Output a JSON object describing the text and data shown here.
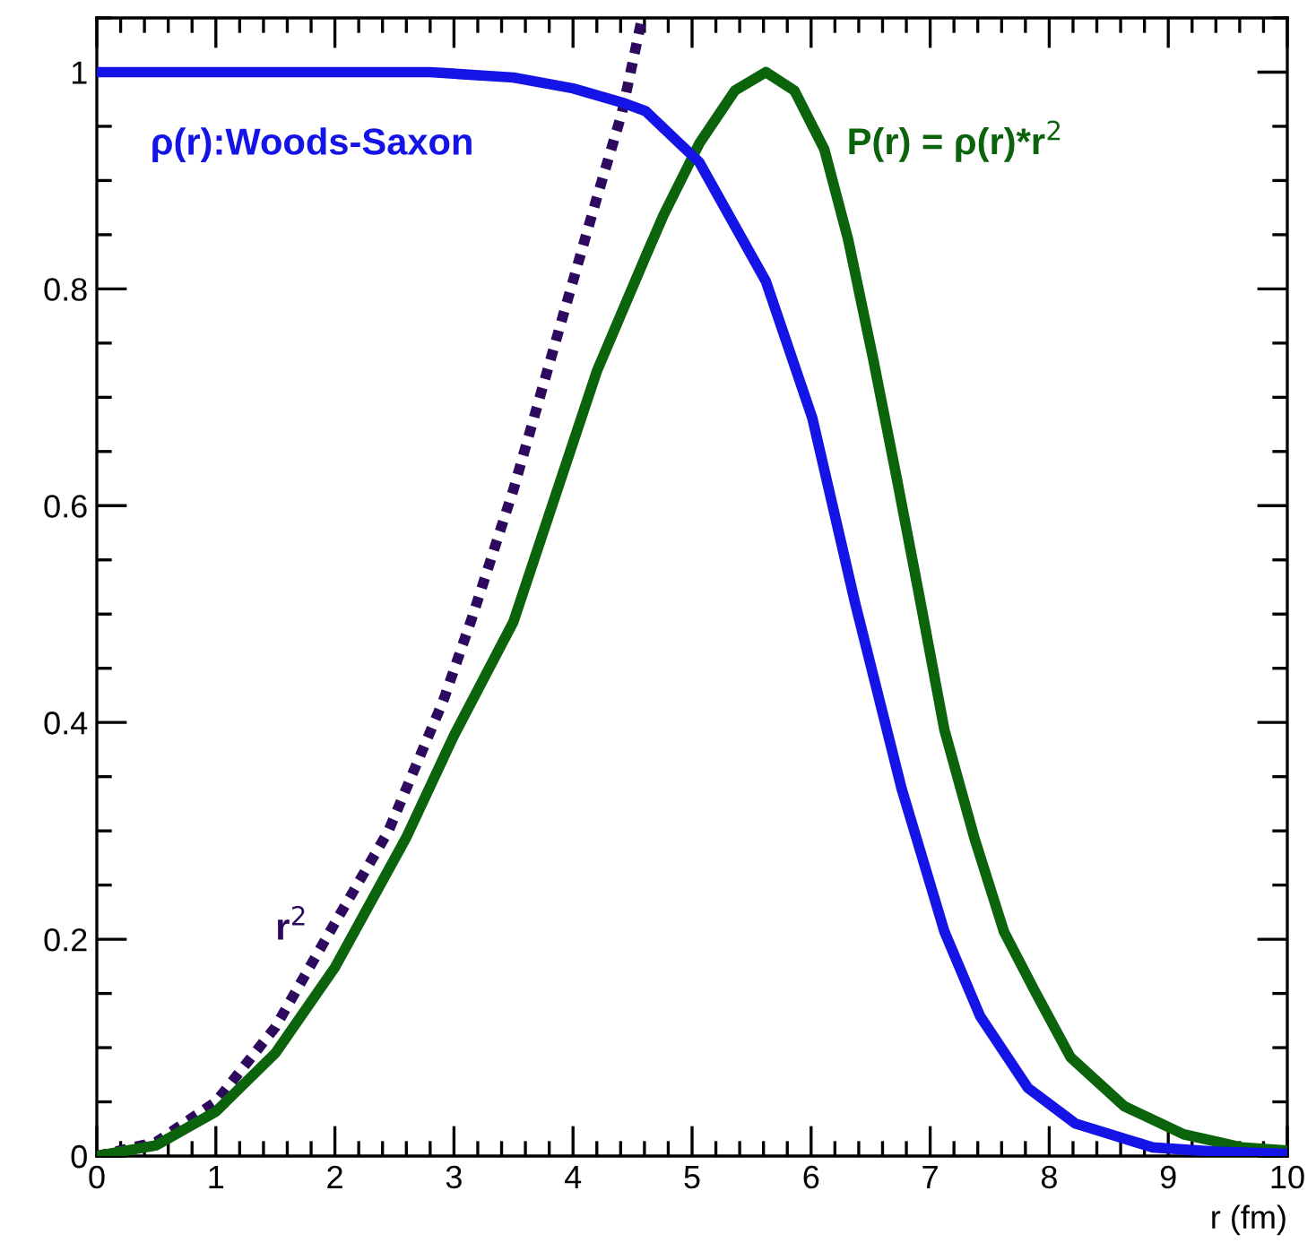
{
  "chart_data": {
    "type": "line",
    "xlabel": "r (fm)",
    "xlim": [
      0,
      10
    ],
    "ylim": [
      0,
      1.05
    ],
    "xticks": [
      0,
      1,
      2,
      3,
      4,
      5,
      6,
      7,
      8,
      9,
      10
    ],
    "yticks": [
      0,
      0.2,
      0.4,
      0.6,
      0.8,
      1
    ],
    "grid": false,
    "series": [
      {
        "name": "ρ(r):Woods-Saxon",
        "color": "#1414e6",
        "line_style": "solid",
        "x": [
          0,
          0.5,
          1,
          1.5,
          2,
          2.5,
          2.8,
          3.5,
          4.0,
          4.41,
          4.61,
          5.06,
          5.62,
          6.01,
          6.37,
          6.76,
          7.12,
          7.42,
          7.82,
          8.22,
          8.87,
          9.4,
          10
        ],
        "values": [
          1,
          1,
          1,
          1,
          1,
          1,
          1,
          0.995,
          0.985,
          0.972,
          0.964,
          0.917,
          0.807,
          0.681,
          0.51,
          0.339,
          0.207,
          0.129,
          0.063,
          0.03,
          0.008,
          0.004,
          0.002
        ]
      },
      {
        "name": "P(r) = ρ(r)*r$^{2}$",
        "color": "#0b640b",
        "line_style": "solid",
        "x": [
          0,
          0.5,
          1,
          1.5,
          2,
          2.6,
          3,
          3.5,
          4.2,
          4.61,
          4.76,
          5.06,
          5.36,
          5.62,
          5.86,
          6.11,
          6.31,
          6.52,
          6.72,
          6.91,
          7.12,
          7.37,
          7.62,
          7.88,
          8.18,
          8.63,
          9.13,
          9.62,
          10
        ],
        "values": [
          0,
          0.01,
          0.041,
          0.095,
          0.174,
          0.294,
          0.388,
          0.493,
          0.724,
          0.83,
          0.868,
          0.934,
          0.983,
          1.0,
          0.983,
          0.929,
          0.846,
          0.736,
          0.625,
          0.516,
          0.393,
          0.294,
          0.207,
          0.152,
          0.091,
          0.046,
          0.02,
          0.008,
          0.005
        ]
      },
      {
        "name": "r$^{2}$",
        "color": "#2e0a5e",
        "line_style": "dotted",
        "x": [
          0,
          0.5,
          1,
          1.5,
          2,
          2.45,
          2.91,
          3.15,
          3.5,
          3.9,
          4.2,
          4.41,
          4.58
        ],
        "values": [
          0,
          0.013,
          0.05,
          0.119,
          0.215,
          0.3,
          0.42,
          0.496,
          0.615,
          0.769,
          0.884,
          0.962,
          1.05
        ]
      }
    ]
  }
}
